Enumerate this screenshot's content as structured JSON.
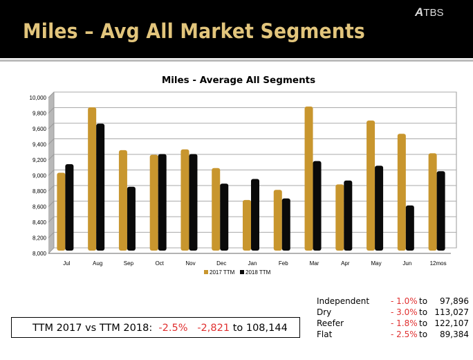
{
  "header": {
    "title": "Miles – Avg All Market Segments",
    "logo_text": "TBS"
  },
  "chart_data": {
    "type": "bar",
    "title": "Miles - Average All Segments",
    "categories": [
      "Jul",
      "Aug",
      "Sep",
      "Oct",
      "Nov",
      "Dec",
      "Jan",
      "Feb",
      "Mar",
      "Apr",
      "May",
      "Jun",
      "12mos"
    ],
    "series": [
      {
        "name": "2017 TTM",
        "color": "#c8962e",
        "values": [
          9000,
          9840,
          9290,
          9230,
          9300,
          9060,
          8650,
          8780,
          9850,
          8850,
          9670,
          9500,
          9250
        ]
      },
      {
        "name": "2018 TTM",
        "color": "#0a0a0a",
        "values": [
          9110,
          9630,
          8820,
          9240,
          9240,
          8860,
          8920,
          8670,
          9150,
          8900,
          9090,
          8580,
          9020
        ]
      }
    ],
    "ylim": [
      8000,
      10000
    ],
    "yticks": [
      "8,000",
      "8,200",
      "8,400",
      "8,600",
      "8,800",
      "9,000",
      "9,200",
      "9,400",
      "9,600",
      "9,800",
      "10,000"
    ],
    "grid": true,
    "legend": "bottom"
  },
  "summary": {
    "label": "TTM 2017 vs TTM 2018:",
    "pct": "-2.5%",
    "delta": "-2,821",
    "to": "to",
    "value": "108,144"
  },
  "segments": [
    {
      "name": "Independent",
      "pct": "- 1.0%",
      "to": "to",
      "value": "97,896"
    },
    {
      "name": "Dry",
      "pct": "- 3.0%",
      "to": "to",
      "value": "113,027"
    },
    {
      "name": "Reefer",
      "pct": "- 1.8%",
      "to": "to",
      "value": "122,107"
    },
    {
      "name": "Flat",
      "pct": "- 2.5%",
      "to": "to",
      "value": "89,384"
    }
  ]
}
